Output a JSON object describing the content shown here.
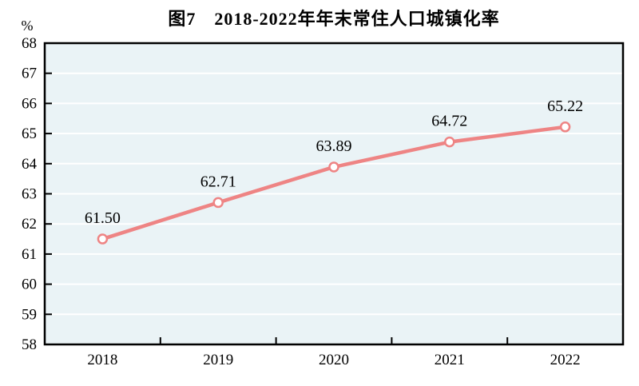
{
  "figure": {
    "title": "图7　2018-2022年年末常住人口城镇化率",
    "unit_label": "%"
  },
  "chart_data": {
    "type": "line",
    "title": "图7　2018-2022年年末常住人口城镇化率",
    "categories": [
      "2018",
      "2019",
      "2020",
      "2021",
      "2022"
    ],
    "series": [
      {
        "name": "年末常住人口城镇化率",
        "values": [
          61.5,
          62.71,
          63.89,
          64.72,
          65.22
        ],
        "labels": [
          "61.50",
          "62.71",
          "63.89",
          "64.72",
          "65.22"
        ]
      }
    ],
    "xlabel": "",
    "ylabel": "%",
    "ylim": [
      58,
      68
    ],
    "ytick_step": 1,
    "yticks": [
      58,
      59,
      60,
      61,
      62,
      63,
      64,
      65,
      66,
      67,
      68
    ],
    "grid": true,
    "legend_position": "none",
    "colors": {
      "line": "#ee8484",
      "marker_fill": "#ffffff",
      "marker_stroke": "#ee8484",
      "plot_background": "#eaf3f6",
      "gridline": "#ffffff",
      "axis": "#000000",
      "text": "#000000"
    }
  }
}
